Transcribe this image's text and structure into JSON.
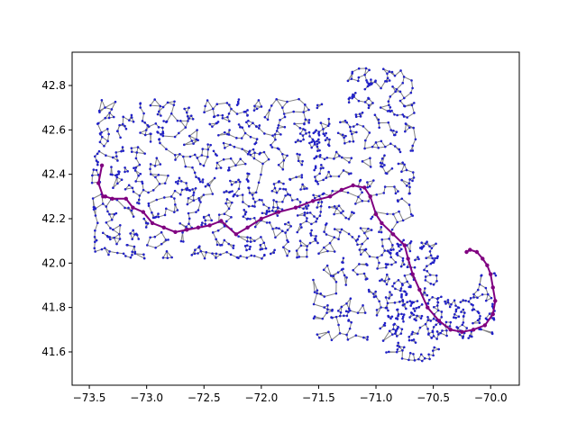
{
  "chart_data": {
    "type": "scatter",
    "title": "",
    "xlabel": "",
    "ylabel": "",
    "xlim": [
      -73.65,
      -69.75
    ],
    "ylim": [
      41.45,
      42.95
    ],
    "x_ticks": [
      -73.5,
      -73.0,
      -72.5,
      -72.0,
      -71.5,
      -71.0,
      -70.5,
      -70.0
    ],
    "x_tick_labels": [
      "−73.5",
      "−73.0",
      "−72.5",
      "−72.0",
      "−71.5",
      "−71.0",
      "−70.5",
      "−70.0"
    ],
    "y_ticks": [
      41.6,
      41.8,
      42.0,
      42.2,
      42.4,
      42.6,
      42.8
    ],
    "y_tick_labels": [
      "41.6",
      "41.8",
      "42.0",
      "42.2",
      "42.4",
      "42.6",
      "42.8"
    ],
    "grid": false,
    "colors": {
      "network_edge": "#808080",
      "network_node": "#2020c8",
      "route": "#800080"
    },
    "route": {
      "x": [
        -73.39,
        -73.42,
        -73.38,
        -73.36,
        -73.3,
        -73.18,
        -73.12,
        -73.03,
        -72.95,
        -72.85,
        -72.75,
        -72.65,
        -72.55,
        -72.45,
        -72.35,
        -72.22,
        -72.12,
        -72.0,
        -71.85,
        -71.7,
        -71.55,
        -71.4,
        -71.3,
        -71.2,
        -71.1,
        -71.05,
        -71.0,
        -70.95,
        -70.85,
        -70.75,
        -70.72,
        -70.68,
        -70.62,
        -70.55,
        -70.45,
        -70.35,
        -70.25,
        -70.15,
        -70.05,
        -69.98,
        -69.96,
        -69.98,
        -70.0,
        -70.03,
        -70.07,
        -70.12,
        -70.18,
        -70.21
      ],
      "y": [
        42.44,
        42.36,
        42.3,
        42.3,
        42.29,
        42.29,
        42.25,
        42.23,
        42.18,
        42.16,
        42.14,
        42.15,
        42.16,
        42.17,
        42.19,
        42.13,
        42.16,
        42.2,
        42.23,
        42.25,
        42.28,
        42.3,
        42.33,
        42.35,
        42.34,
        42.3,
        42.22,
        42.18,
        42.13,
        42.08,
        42.02,
        41.95,
        41.88,
        41.8,
        41.74,
        41.7,
        41.69,
        41.7,
        41.72,
        41.77,
        41.83,
        41.89,
        41.95,
        41.99,
        42.02,
        42.05,
        42.06,
        42.05
      ]
    },
    "network": {
      "node_count": 1450,
      "region_bounds": {
        "western": {
          "x": [
            -73.48,
            -71.45
          ],
          "y": [
            42.02,
            42.74
          ]
        },
        "eastern": {
          "x": [
            -71.55,
            -70.65
          ],
          "y": [
            41.65,
            42.88
          ]
        },
        "southeast": {
          "x": [
            -70.95,
            -70.45
          ],
          "y": [
            41.55,
            42.1
          ]
        },
        "cape": {
          "x": [
            -70.55,
            -69.95
          ],
          "y": [
            41.66,
            41.85
          ]
        }
      }
    }
  }
}
